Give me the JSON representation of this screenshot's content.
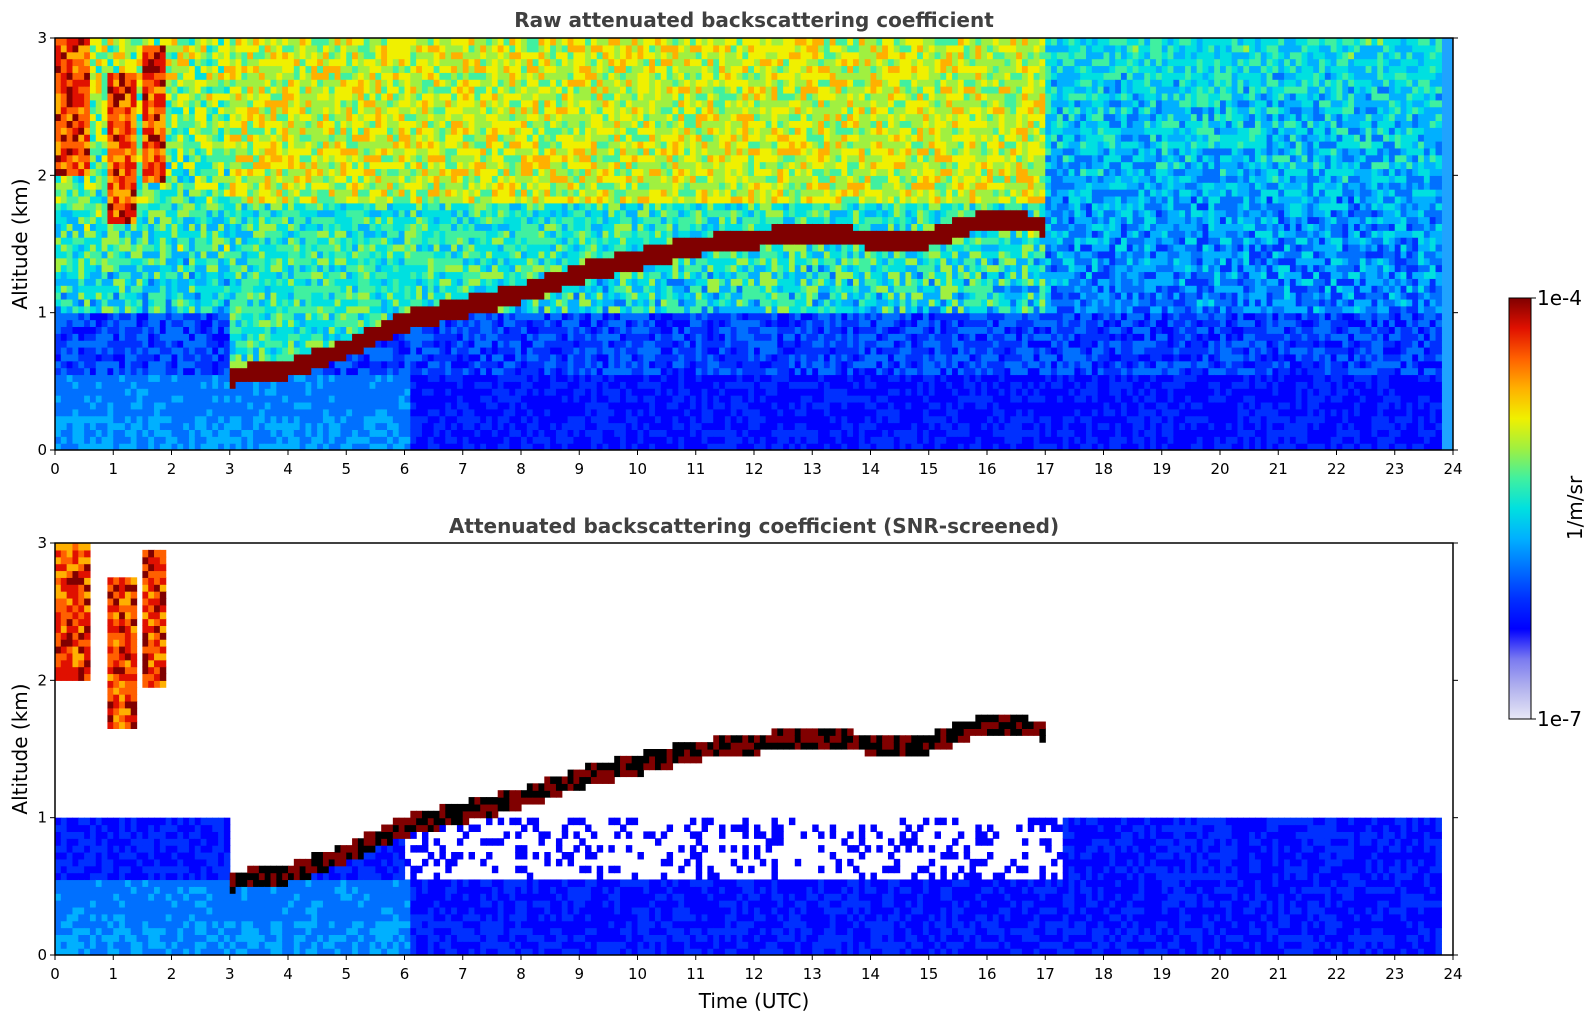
{
  "chart_data": [
    {
      "type": "heatmap",
      "title": "Raw attenuated backscattering coefficient",
      "xlabel": "",
      "ylabel": "Altitude (km)",
      "xlim": [
        0,
        24
      ],
      "ylim": [
        0,
        3
      ],
      "xticks": [
        "0",
        "1",
        "2",
        "3",
        "4",
        "5",
        "6",
        "7",
        "8",
        "9",
        "10",
        "11",
        "12",
        "13",
        "14",
        "15",
        "16",
        "17",
        "18",
        "19",
        "20",
        "21",
        "22",
        "23",
        "24"
      ],
      "yticks": [
        "0",
        "1",
        "2",
        "3"
      ],
      "cloud_base_km": {
        "time_utc": [
          3.0,
          4.0,
          5.0,
          6.0,
          7.0,
          8.0,
          9.0,
          10.0,
          11.0,
          12.0,
          13.0,
          14.0,
          15.0,
          16.0,
          17.0
        ],
        "altitude": [
          0.55,
          0.6,
          0.75,
          0.95,
          1.05,
          1.15,
          1.3,
          1.4,
          1.5,
          1.55,
          1.6,
          1.55,
          1.55,
          1.7,
          1.65
        ]
      },
      "cirrus_layers_km": [
        {
          "time_start": 0.0,
          "time_end": 0.6,
          "bottom": 2.0,
          "top": 3.0
        },
        {
          "time_start": 0.9,
          "time_end": 1.4,
          "bottom": 1.65,
          "top": 2.75
        },
        {
          "time_start": 1.5,
          "time_end": 1.85,
          "bottom": 1.95,
          "top": 2.95
        }
      ]
    },
    {
      "type": "heatmap",
      "title": "Attenuated backscattering coefficient (SNR-screened)",
      "xlabel": "Time (UTC)",
      "ylabel": "Altitude (km)",
      "xlim": [
        0,
        24
      ],
      "ylim": [
        0,
        3
      ],
      "xticks": [
        "0",
        "1",
        "2",
        "3",
        "4",
        "5",
        "6",
        "7",
        "8",
        "9",
        "10",
        "11",
        "12",
        "13",
        "14",
        "15",
        "16",
        "17",
        "18",
        "19",
        "20",
        "21",
        "22",
        "23",
        "24"
      ],
      "yticks": [
        "0",
        "1",
        "2",
        "3"
      ],
      "colorbar": {
        "label": "1/m/sr",
        "min_label": "1e-7",
        "max_label": "1e-4",
        "scale": "log"
      }
    }
  ],
  "colors": {
    "colormap": [
      "#e8e8f6",
      "#b4b4ee",
      "#7a7af0",
      "#0000ff",
      "#0030ff",
      "#0070ff",
      "#00b0ff",
      "#00e0e0",
      "#40f0a0",
      "#a0f040",
      "#f0f000",
      "#ffb000",
      "#ff6000",
      "#e01000",
      "#800000"
    ],
    "axis": "#000000",
    "title": "#404040"
  }
}
